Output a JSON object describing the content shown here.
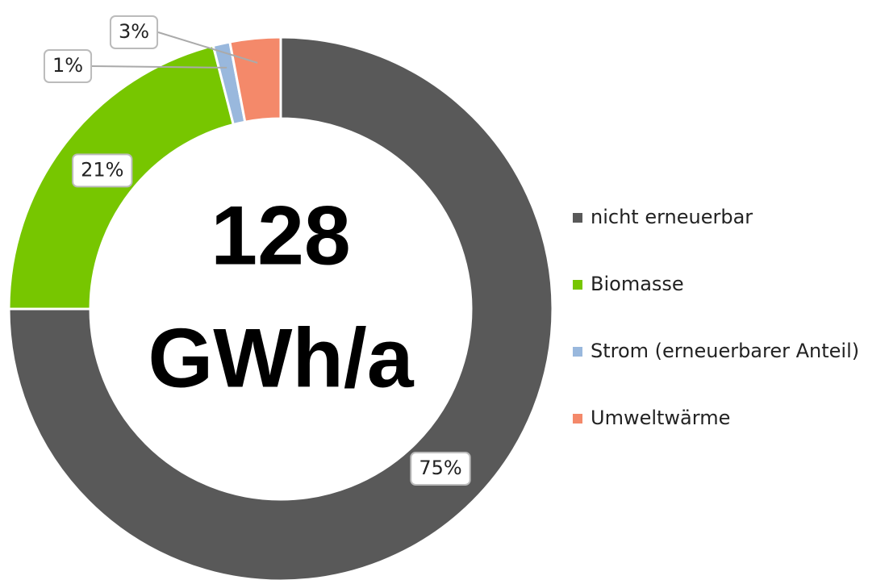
{
  "chart_data": {
    "type": "donut",
    "categories": [
      "nicht erneuerbar",
      "Biomasse",
      "Strom (erneuerbarer Anteil)",
      "Umweltwärme"
    ],
    "values": [
      75,
      21,
      1,
      3
    ],
    "value_labels": [
      "75%",
      "21%",
      "1%",
      "3%"
    ],
    "colors": [
      "#595959",
      "#77c600",
      "#99b8dd",
      "#f4896a"
    ],
    "center_label": [
      "128",
      "GWh/a"
    ],
    "legend": "right"
  }
}
